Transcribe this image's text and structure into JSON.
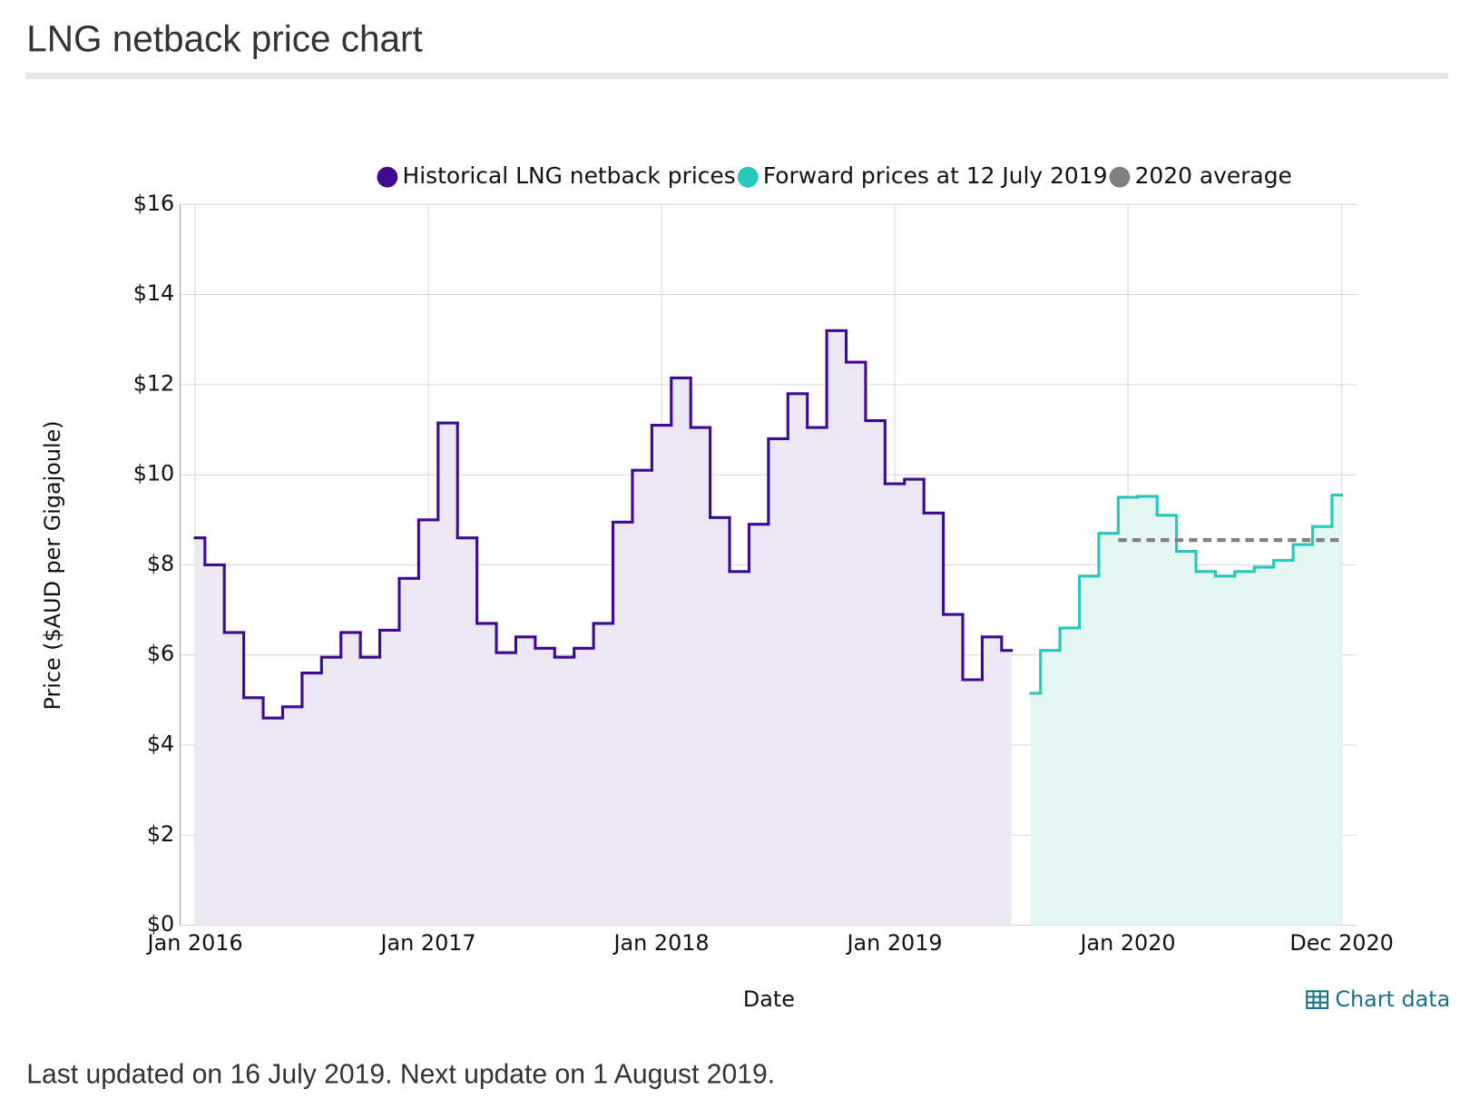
{
  "header": {
    "title": "LNG netback price chart"
  },
  "chart_data": {
    "type": "step",
    "x_label": "Date",
    "y_label": "Price ($AUD per Gigajoule)",
    "series": [
      {
        "name": "Historical LNG netback prices",
        "color": "#3d0a91",
        "fill": "#ece8f3",
        "x": [
          "2016-01",
          "2016-02",
          "2016-03",
          "2016-04",
          "2016-05",
          "2016-06",
          "2016-07",
          "2016-08",
          "2016-09",
          "2016-10",
          "2016-11",
          "2016-12",
          "2017-01",
          "2017-02",
          "2017-03",
          "2017-04",
          "2017-05",
          "2017-06",
          "2017-07",
          "2017-08",
          "2017-09",
          "2017-10",
          "2017-11",
          "2017-12",
          "2018-01",
          "2018-02",
          "2018-03",
          "2018-04",
          "2018-05",
          "2018-06",
          "2018-07",
          "2018-08",
          "2018-09",
          "2018-10",
          "2018-11",
          "2018-12",
          "2019-01",
          "2019-02",
          "2019-03",
          "2019-04",
          "2019-05",
          "2019-06",
          "2019-07"
        ],
        "values": [
          8.6,
          8.0,
          6.5,
          5.05,
          4.6,
          4.85,
          5.6,
          5.95,
          6.5,
          5.95,
          6.55,
          7.7,
          9.0,
          11.15,
          8.6,
          6.7,
          6.05,
          6.4,
          6.15,
          5.95,
          6.15,
          6.7,
          8.95,
          10.1,
          11.1,
          12.15,
          11.05,
          9.05,
          7.85,
          8.9,
          10.8,
          11.8,
          11.05,
          13.2,
          12.5,
          11.2,
          9.8,
          9.9,
          9.15,
          6.9,
          5.45,
          6.4,
          6.1
        ]
      },
      {
        "name": "Forward prices at 12 July 2019",
        "color": "#27c7bd",
        "fill": "#e3f7f5",
        "x": [
          "2019-08",
          "2019-09",
          "2019-10",
          "2019-11",
          "2019-12",
          "2020-01",
          "2020-02",
          "2020-03",
          "2020-04",
          "2020-05",
          "2020-06",
          "2020-07",
          "2020-08",
          "2020-09",
          "2020-10",
          "2020-11",
          "2020-12"
        ],
        "values": [
          5.15,
          6.1,
          6.6,
          7.75,
          8.7,
          9.5,
          9.52,
          9.1,
          8.3,
          7.85,
          7.75,
          7.85,
          7.95,
          8.1,
          8.45,
          8.85,
          9.55
        ]
      }
    ],
    "average": {
      "name": "2020 average",
      "color": "#808080",
      "x": [
        "2020-01",
        "2020-12"
      ],
      "value": 8.55
    },
    "xlim": [
      "2016-01",
      "2020-12"
    ],
    "xticks": [
      {
        "value": "2016-01",
        "label": "Jan 2016"
      },
      {
        "value": "2017-01",
        "label": "Jan 2017"
      },
      {
        "value": "2018-01",
        "label": "Jan 2018"
      },
      {
        "value": "2019-01",
        "label": "Jan 2019"
      },
      {
        "value": "2020-01",
        "label": "Jan 2020"
      },
      {
        "value": "2020-12",
        "label": "Dec 2020"
      }
    ],
    "ylim": [
      0,
      16
    ],
    "yticks": [
      {
        "value": 0,
        "label": "$0"
      },
      {
        "value": 2,
        "label": "$2"
      },
      {
        "value": 4,
        "label": "$4"
      },
      {
        "value": 6,
        "label": "$6"
      },
      {
        "value": 8,
        "label": "$8"
      },
      {
        "value": 10,
        "label": "$10"
      },
      {
        "value": 12,
        "label": "$12"
      },
      {
        "value": 14,
        "label": "$14"
      },
      {
        "value": 16,
        "label": "$16"
      }
    ],
    "grid": true,
    "legend": "top"
  },
  "chart_link": "Chart data",
  "footer": "Last updated on 16 July 2019. Next update on 1 August 2019."
}
